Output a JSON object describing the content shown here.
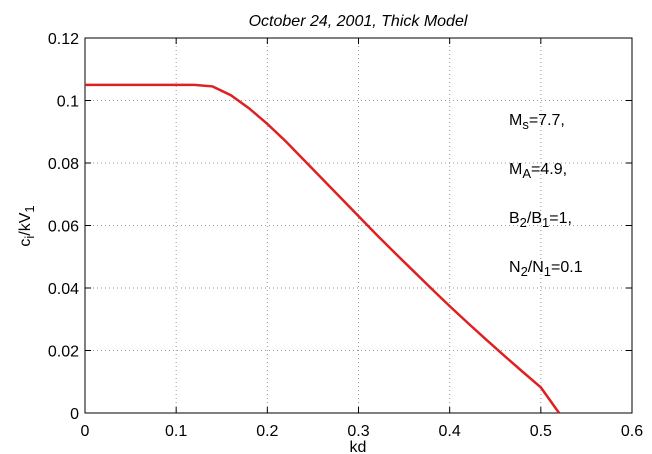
{
  "chart_data": {
    "type": "line",
    "title": "October 24, 2001, Thick Model",
    "x_label": "kd",
    "y_label": [
      "c",
      "i",
      "/kV",
      "1"
    ],
    "x": [
      0,
      0.05,
      0.1,
      0.12,
      0.14,
      0.16,
      0.18,
      0.2,
      0.22,
      0.24,
      0.26,
      0.28,
      0.3,
      0.32,
      0.34,
      0.36,
      0.38,
      0.4,
      0.42,
      0.44,
      0.46,
      0.48,
      0.5,
      0.52
    ],
    "series": [
      {
        "color": "#e02020",
        "values": [
          0.105,
          0.105,
          0.105,
          0.105,
          0.1045,
          0.1017,
          0.0975,
          0.0925,
          0.087,
          0.081,
          0.075,
          0.069,
          0.063,
          0.057,
          0.0512,
          0.0455,
          0.0398,
          0.0342,
          0.0288,
          0.0235,
          0.0183,
          0.0132,
          0.0082,
          0
        ]
      }
    ],
    "xlim": [
      0,
      0.6
    ],
    "xticks": [
      0,
      0.1,
      0.2,
      0.3,
      0.4,
      0.5,
      0.6
    ],
    "ylim": [
      0,
      0.12
    ],
    "yticks": [
      0,
      0.02,
      0.04,
      0.06,
      0.08,
      0.1,
      0.12
    ],
    "grid": true,
    "annotations": [
      [
        "M",
        "s",
        "=7.7,"
      ],
      [
        "M",
        "A",
        "=4.9,"
      ],
      [
        "B",
        "2",
        "/B",
        "1",
        "=1,"
      ],
      [
        "N",
        "2",
        "/N",
        "1",
        "=0.1"
      ]
    ]
  }
}
